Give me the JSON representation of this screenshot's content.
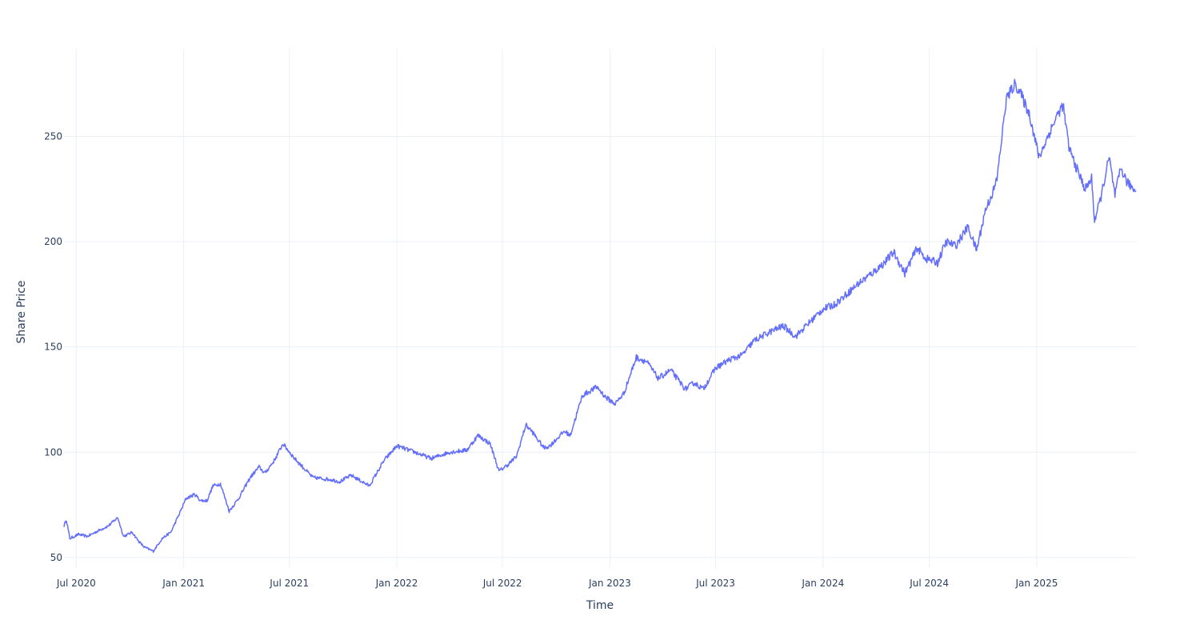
{
  "chart_data": {
    "type": "line",
    "title": "",
    "xlabel": "Time",
    "ylabel": "Share Price",
    "x_range": [
      "2020-06-10",
      "2025-06-20"
    ],
    "y_range": [
      45,
      292
    ],
    "x_ticks": [
      {
        "date": "2020-07-01",
        "label": "Jul 2020"
      },
      {
        "date": "2021-01-01",
        "label": "Jan 2021"
      },
      {
        "date": "2021-07-01",
        "label": "Jul 2021"
      },
      {
        "date": "2022-01-01",
        "label": "Jan 2022"
      },
      {
        "date": "2022-07-01",
        "label": "Jul 2022"
      },
      {
        "date": "2023-01-01",
        "label": "Jan 2023"
      },
      {
        "date": "2023-07-01",
        "label": "Jul 2023"
      },
      {
        "date": "2024-01-01",
        "label": "Jan 2024"
      },
      {
        "date": "2024-07-01",
        "label": "Jul 2024"
      },
      {
        "date": "2025-01-01",
        "label": "Jan 2025"
      }
    ],
    "y_ticks": [
      50,
      100,
      150,
      200,
      250
    ],
    "grid": true,
    "line_color": "#636efa",
    "series": [
      {
        "x": [
          "2020-06-10",
          "2020-06-14",
          "2020-06-20",
          "2020-07-05",
          "2020-07-20",
          "2020-08-10",
          "2020-08-25",
          "2020-09-10",
          "2020-09-20",
          "2020-10-05",
          "2020-10-15",
          "2020-10-25",
          "2020-11-10",
          "2020-11-25",
          "2020-12-10",
          "2020-12-25",
          "2021-01-05",
          "2021-01-20",
          "2021-01-30",
          "2021-02-10",
          "2021-02-20",
          "2021-03-05",
          "2021-03-20",
          "2021-04-05",
          "2021-04-25",
          "2021-05-10",
          "2021-05-20",
          "2021-06-05",
          "2021-06-20",
          "2021-07-10",
          "2021-08-10",
          "2021-09-10",
          "2021-09-25",
          "2021-10-15",
          "2021-11-15",
          "2021-12-10",
          "2022-01-01",
          "2022-02-01",
          "2022-03-01",
          "2022-04-01",
          "2022-05-01",
          "2022-05-20",
          "2022-06-10",
          "2022-06-25",
          "2022-07-10",
          "2022-07-25",
          "2022-08-10",
          "2022-08-20",
          "2022-09-10",
          "2022-09-20",
          "2022-10-15",
          "2022-10-25",
          "2022-11-15",
          "2022-12-10",
          "2022-12-25",
          "2023-01-10",
          "2023-01-25",
          "2023-02-15",
          "2023-03-05",
          "2023-03-25",
          "2023-04-15",
          "2023-05-10",
          "2023-05-25",
          "2023-06-10",
          "2023-07-01",
          "2023-07-25",
          "2023-08-15",
          "2023-09-05",
          "2023-10-01",
          "2023-10-25",
          "2023-11-15",
          "2023-12-10",
          "2024-01-01",
          "2024-01-20",
          "2024-02-10",
          "2024-03-01",
          "2024-03-25",
          "2024-04-15",
          "2024-05-01",
          "2024-05-20",
          "2024-06-10",
          "2024-06-25",
          "2024-07-15",
          "2024-07-30",
          "2024-08-15",
          "2024-09-05",
          "2024-09-20",
          "2024-10-05",
          "2024-10-20",
          "2024-10-25",
          "2024-11-10",
          "2024-11-25",
          "2024-12-05",
          "2024-12-20",
          "2025-01-05",
          "2025-01-20",
          "2025-02-05",
          "2025-02-15",
          "2025-02-25",
          "2025-03-10",
          "2025-03-25",
          "2025-04-05",
          "2025-04-10",
          "2025-04-20",
          "2025-05-05",
          "2025-05-15",
          "2025-05-25",
          "2025-06-05",
          "2025-06-20"
        ],
        "y": [
          65,
          68,
          59,
          61,
          60,
          63,
          65,
          69,
          60,
          62,
          58,
          55,
          53,
          59,
          62,
          71,
          78,
          80,
          77,
          77,
          84,
          85,
          72,
          78,
          88,
          93,
          90,
          96,
          104,
          97,
          88,
          87,
          86,
          89,
          84,
          96,
          103,
          100,
          97,
          100,
          101,
          108,
          104,
          91,
          94,
          98,
          113,
          110,
          102,
          103,
          110,
          108,
          127,
          131,
          126,
          123,
          128,
          145,
          143,
          135,
          139,
          130,
          133,
          130,
          140,
          144,
          146,
          153,
          157,
          160,
          155,
          162,
          168,
          170,
          175,
          180,
          185,
          190,
          195,
          185,
          197,
          192,
          190,
          200,
          198,
          207,
          196,
          215,
          225,
          230,
          268,
          275,
          270,
          260,
          240,
          250,
          260,
          265,
          245,
          235,
          225,
          230,
          210,
          220,
          240,
          222,
          235,
          228,
          224
        ]
      }
    ]
  }
}
